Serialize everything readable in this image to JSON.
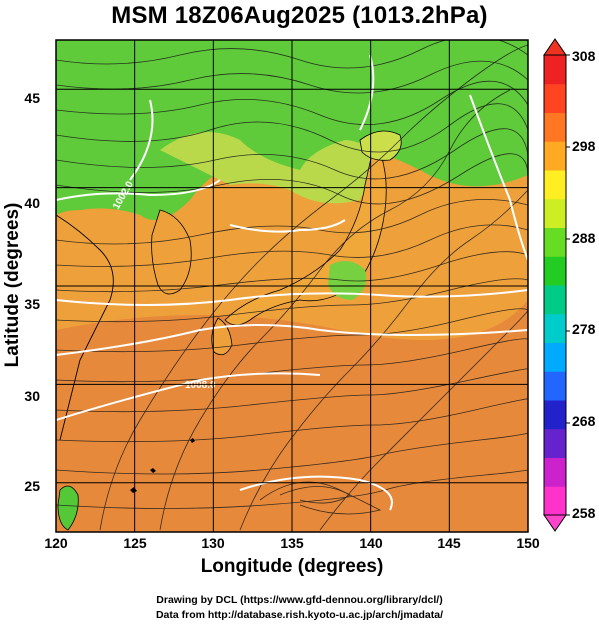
{
  "title": "MSM 18Z06Aug2025 (1013.2hPa)",
  "axes": {
    "xlabel": "Longitude (degrees)",
    "ylabel": "Latitude  (degrees)",
    "x_ticks": [
      "120",
      "125",
      "130",
      "135",
      "140",
      "145",
      "150"
    ],
    "y_ticks": [
      "45",
      "40",
      "35",
      "30",
      "25"
    ]
  },
  "colorbar": {
    "ticks": [
      "308",
      "298",
      "288",
      "278",
      "268",
      "258"
    ],
    "colors": [
      "#ff33cc",
      "#cc22cc",
      "#6622cc",
      "#2222cc",
      "#2266ff",
      "#00aaff",
      "#00cccc",
      "#00cc88",
      "#22cc22",
      "#66dd22",
      "#ccee22",
      "#ffee22",
      "#ffaa22",
      "#ff7722",
      "#ff4422",
      "#ee2222"
    ]
  },
  "chart_data": {
    "type": "map",
    "field": "temperature (K) with streamlines and isobars (hPa)",
    "xlim": [
      120,
      150
    ],
    "ylim": [
      22.5,
      47.5
    ],
    "x_ticks": [
      120,
      125,
      130,
      135,
      140,
      145,
      150
    ],
    "y_ticks": [
      25,
      30,
      35,
      40,
      45
    ],
    "colorbar_range": [
      258,
      308
    ],
    "contour_labels": [
      "1002.0",
      "1008.0"
    ]
  },
  "credits": {
    "line1": "Drawing by DCL (https://www.gfd-dennou.org/library/dcl/)",
    "line2": "Data from http://database.rish.kyoto-u.ac.jp/arch/jmadata/"
  }
}
